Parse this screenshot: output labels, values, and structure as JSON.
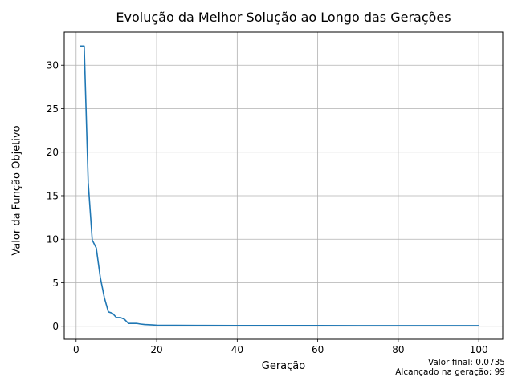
{
  "chart_data": {
    "type": "line",
    "title": "Evolução da Melhor Solução ao Longo das Gerações",
    "xlabel": "Geração",
    "ylabel": "Valor da Função Objetivo",
    "xlim": [
      -2.95,
      105.95
    ],
    "ylim": [
      -1.5,
      33.8
    ],
    "xticks": [
      0,
      20,
      40,
      60,
      80,
      100
    ],
    "yticks": [
      0,
      5,
      10,
      15,
      20,
      25,
      30
    ],
    "grid": true,
    "series": [
      {
        "color": "#1f77b4",
        "x": [
          1,
          2,
          3,
          4,
          5,
          6,
          7,
          8,
          9,
          10,
          11,
          12,
          13,
          14,
          15,
          16,
          17,
          18,
          19,
          20,
          25,
          30,
          40,
          50,
          60,
          70,
          80,
          90,
          99,
          100
        ],
        "y": [
          32.2,
          32.2,
          16.5,
          9.9,
          9.0,
          5.6,
          3.3,
          1.65,
          1.5,
          1.0,
          1.0,
          0.8,
          0.33,
          0.33,
          0.33,
          0.25,
          0.2,
          0.18,
          0.15,
          0.12,
          0.11,
          0.1,
          0.09,
          0.085,
          0.08,
          0.078,
          0.076,
          0.075,
          0.0735,
          0.0735
        ]
      }
    ],
    "annotations": [
      "Valor final: 0.0735",
      "Alcançado na geração: 99"
    ]
  }
}
